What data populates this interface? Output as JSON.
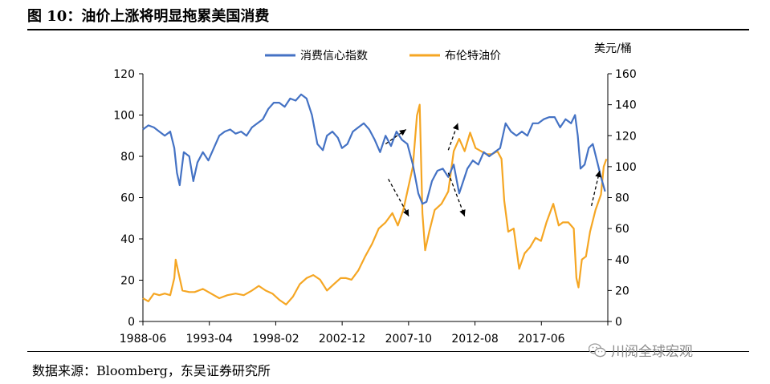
{
  "header": {
    "title": "图 10：油价上涨将明显拖累美国消费"
  },
  "footer": {
    "source": "数据来源：Bloomberg，东吴证券研究所"
  },
  "watermark": {
    "text": "川阅全球宏观",
    "icon": "wechat-icon"
  },
  "colors": {
    "consumer_confidence": "#4472C4",
    "brent": "#F5A623",
    "arrow": "#000000"
  },
  "chart_data": {
    "type": "line",
    "x_range": [
      1988.4,
      2022.5
    ],
    "x_tick_labels": [
      "1988-06",
      "1993-04",
      "1998-02",
      "2002-12",
      "2007-10",
      "2012-08",
      "2017-06"
    ],
    "y_left": {
      "ticks": [
        0,
        20,
        40,
        60,
        80,
        100,
        120
      ],
      "ylim": [
        0,
        120
      ]
    },
    "y_right": {
      "label": "美元/桶",
      "ticks": [
        0,
        20,
        40,
        60,
        80,
        100,
        120,
        140,
        160
      ],
      "ylim": [
        0,
        160
      ]
    },
    "legend_position": "top-center",
    "series": [
      {
        "name": "消费信心指数",
        "axis": "left",
        "x": [
          1988.4,
          1988.8,
          1989.2,
          1989.6,
          1990.0,
          1990.4,
          1990.7,
          1990.9,
          1991.1,
          1991.4,
          1991.8,
          1992.1,
          1992.4,
          1992.8,
          1993.2,
          1993.6,
          1994.0,
          1994.4,
          1994.8,
          1995.2,
          1995.6,
          1996.0,
          1996.4,
          1996.8,
          1997.2,
          1997.6,
          1998.0,
          1998.4,
          1998.8,
          1999.2,
          1999.6,
          2000.0,
          2000.4,
          2000.8,
          2001.2,
          2001.6,
          2001.9,
          2002.3,
          2002.7,
          2003.0,
          2003.4,
          2003.8,
          2004.2,
          2004.6,
          2005.0,
          2005.4,
          2005.8,
          2006.2,
          2006.6,
          2007.0,
          2007.4,
          2007.8,
          2008.2,
          2008.6,
          2008.9,
          2009.2,
          2009.6,
          2010.0,
          2010.4,
          2010.8,
          2011.2,
          2011.6,
          2011.9,
          2012.2,
          2012.6,
          2013.0,
          2013.4,
          2013.8,
          2014.2,
          2014.6,
          2015.0,
          2015.4,
          2015.8,
          2016.2,
          2016.6,
          2017.0,
          2017.4,
          2017.8,
          2018.2,
          2018.6,
          2019.0,
          2019.4,
          2019.8,
          2020.1,
          2020.3,
          2020.5,
          2020.8,
          2021.1,
          2021.4,
          2021.7,
          2022.0,
          2022.3
        ],
        "values": [
          93,
          95,
          94,
          92,
          90,
          92,
          84,
          72,
          66,
          82,
          80,
          68,
          77,
          82,
          78,
          84,
          90,
          92,
          93,
          91,
          92,
          90,
          94,
          96,
          98,
          103,
          106,
          106,
          104,
          108,
          107,
          110,
          108,
          100,
          86,
          83,
          90,
          92,
          89,
          84,
          86,
          92,
          94,
          96,
          93,
          88,
          82,
          90,
          85,
          92,
          88,
          86,
          76,
          62,
          57,
          58,
          68,
          73,
          74,
          70,
          76,
          62,
          68,
          74,
          78,
          76,
          82,
          80,
          82,
          84,
          96,
          92,
          90,
          92,
          90,
          96,
          96,
          98,
          99,
          99,
          94,
          98,
          96,
          100,
          90,
          74,
          76,
          84,
          86,
          78,
          70,
          63
        ],
        "color": "#4472C4"
      },
      {
        "name": "布伦特油价",
        "axis": "right",
        "x": [
          1988.4,
          1988.8,
          1989.2,
          1989.6,
          1990.0,
          1990.4,
          1990.7,
          1990.8,
          1991.0,
          1991.3,
          1991.8,
          1992.2,
          1992.8,
          1993.4,
          1994.0,
          1994.6,
          1995.2,
          1995.8,
          1996.4,
          1996.9,
          1997.4,
          1997.9,
          1998.4,
          1998.9,
          1999.4,
          1999.9,
          2000.4,
          2000.9,
          2001.4,
          2001.9,
          2002.4,
          2002.9,
          2003.3,
          2003.7,
          2004.2,
          2004.7,
          2005.2,
          2005.7,
          2006.2,
          2006.7,
          2007.1,
          2007.5,
          2007.9,
          2008.2,
          2008.5,
          2008.7,
          2008.9,
          2009.1,
          2009.4,
          2009.8,
          2010.3,
          2010.8,
          2011.2,
          2011.6,
          2012.0,
          2012.4,
          2012.8,
          2013.2,
          2013.6,
          2014.0,
          2014.4,
          2014.7,
          2014.9,
          2015.2,
          2015.6,
          2016.0,
          2016.4,
          2016.8,
          2017.2,
          2017.6,
          2018.0,
          2018.5,
          2018.9,
          2019.2,
          2019.6,
          2020.0,
          2020.2,
          2020.35,
          2020.6,
          2020.9,
          2021.2,
          2021.6,
          2022.0,
          2022.2,
          2022.4
        ],
        "values": [
          15,
          13,
          18,
          17,
          18,
          17,
          28,
          40,
          32,
          20,
          19,
          19,
          21,
          18,
          15,
          17,
          18,
          17,
          20,
          23,
          20,
          18,
          14,
          11,
          16,
          24,
          28,
          30,
          27,
          20,
          24,
          28,
          28,
          27,
          33,
          42,
          50,
          60,
          64,
          70,
          62,
          72,
          88,
          100,
          133,
          140,
          70,
          46,
          58,
          72,
          76,
          84,
          110,
          118,
          110,
          122,
          112,
          110,
          108,
          108,
          110,
          105,
          78,
          58,
          60,
          34,
          44,
          48,
          54,
          52,
          64,
          76,
          62,
          64,
          64,
          60,
          28,
          22,
          40,
          42,
          58,
          72,
          82,
          100,
          105
        ],
        "color": "#F5A623"
      }
    ],
    "annotations": [
      {
        "type": "arrow",
        "from": [
          2006.2,
          86
        ],
        "to": [
          2007.7,
          93
        ]
      },
      {
        "type": "arrow",
        "from": [
          2006.4,
          69
        ],
        "to": [
          2007.9,
          51
        ]
      },
      {
        "type": "arrow",
        "from": [
          2010.8,
          83
        ],
        "to": [
          2011.5,
          96
        ]
      },
      {
        "type": "arrow",
        "from": [
          2010.8,
          72
        ],
        "to": [
          2012.0,
          51
        ]
      },
      {
        "type": "arrow",
        "from": [
          2021.3,
          56
        ],
        "to": [
          2021.9,
          73
        ]
      }
    ]
  }
}
